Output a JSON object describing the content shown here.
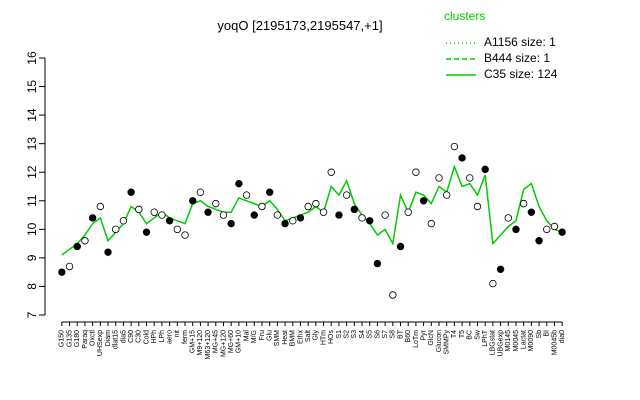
{
  "chart_data": {
    "type": "line",
    "title": "yoqO [2195173,2195547,+1]",
    "legend_title": "clusters",
    "legend_position": "top-right",
    "ylim": [
      7,
      16
    ],
    "yticks": [
      7,
      8,
      9,
      10,
      11,
      12,
      13,
      14,
      15,
      16
    ],
    "categories": [
      "G150",
      "G135",
      "G180",
      "Paraq",
      "Oxctl",
      "UHSexp",
      "Diam",
      "dlat15",
      "dia5",
      "C90",
      "C30",
      "Cold",
      "HPh",
      "LPh",
      "aero",
      "nit",
      "ferm",
      "GM+15",
      "M9+120",
      "M63+120",
      "MG+45",
      "MG+120",
      "MG+60",
      "GM+10",
      "Mal",
      "M/G",
      "Fru",
      "Glu",
      "SMM",
      "Heat",
      "BMM",
      "Ethx",
      "Salt",
      "Gly",
      "HTm",
      "HOs",
      "S1",
      "S2",
      "S3",
      "S4",
      "S5",
      "S6",
      "S7",
      "S8",
      "BT",
      "B60",
      "LoTm",
      "Pyr",
      "GlcN",
      "Glucon",
      "SMMPy",
      "T4",
      "T5",
      "BC",
      "Sw",
      "LPhT",
      "LBGstat",
      "UBGexp",
      "M0145",
      "M0045",
      "Lactat",
      "M0090",
      "Sb",
      "BI",
      "M0045b",
      "dia0"
    ],
    "series": [
      {
        "name": "A1156 size: 1",
        "color": "#00cc00",
        "dash": "dotted"
      },
      {
        "name": "B444 size: 1",
        "color": "#00cc00",
        "dash": "dashed"
      },
      {
        "name": "C35 size: 124",
        "color": "#00cc00",
        "dash": "solid",
        "values": [
          9.1,
          9.3,
          9.5,
          9.8,
          10.2,
          10.4,
          9.6,
          9.9,
          10.2,
          10.8,
          10.6,
          10.2,
          10.4,
          10.6,
          10.4,
          10.3,
          10.2,
          10.9,
          11.0,
          10.8,
          10.7,
          10.6,
          10.6,
          11.1,
          11.0,
          10.9,
          10.8,
          11.0,
          10.7,
          10.3,
          10.4,
          10.5,
          10.6,
          10.8,
          10.6,
          11.5,
          11.2,
          11.7,
          10.9,
          10.5,
          10.2,
          9.8,
          10.0,
          9.5,
          11.2,
          10.6,
          11.3,
          11.2,
          10.9,
          11.5,
          11.3,
          12.2,
          11.5,
          11.6,
          11.2,
          11.9,
          9.5,
          9.8,
          10.1,
          10.3,
          11.4,
          11.6,
          10.8,
          10.3,
          10.0,
          9.9
        ]
      }
    ],
    "markers": {
      "values": [
        8.5,
        8.7,
        9.4,
        9.6,
        10.4,
        10.8,
        9.2,
        10.0,
        10.3,
        11.3,
        10.7,
        9.9,
        10.6,
        10.5,
        10.3,
        10.0,
        9.8,
        11.0,
        11.3,
        10.6,
        10.9,
        10.5,
        10.2,
        11.6,
        11.2,
        10.5,
        10.8,
        11.3,
        10.5,
        10.2,
        10.3,
        10.4,
        10.8,
        10.9,
        10.6,
        12.0,
        10.5,
        11.2,
        10.7,
        10.4,
        10.3,
        8.8,
        10.5,
        7.7,
        9.4,
        10.6,
        12.0,
        11.0,
        10.2,
        11.8,
        11.2,
        12.9,
        12.5,
        11.8,
        10.8,
        12.1,
        8.1,
        8.6,
        10.4,
        10.0,
        10.9,
        10.6,
        9.6,
        10.0,
        10.1,
        9.9
      ],
      "fills": [
        "#000",
        "#fff",
        "#000",
        "#fff",
        "#000",
        "#fff",
        "#000",
        "#fff",
        "#fff",
        "#000",
        "#fff",
        "#000",
        "#fff",
        "#fff",
        "#000",
        "#fff",
        "#fff",
        "#000",
        "#fff",
        "#000",
        "#fff",
        "#fff",
        "#000",
        "#000",
        "#fff",
        "#000",
        "#fff",
        "#000",
        "#fff",
        "#000",
        "#fff",
        "#000",
        "#fff",
        "#fff",
        "#fff",
        "#fff",
        "#000",
        "#fff",
        "#000",
        "#fff",
        "#000",
        "#000",
        "#fff",
        "#fff",
        "#000",
        "#fff",
        "#fff",
        "#000",
        "#fff",
        "#fff",
        "#fff",
        "#fff",
        "#000",
        "#fff",
        "#fff",
        "#000",
        "#fff",
        "#000",
        "#fff",
        "#000",
        "#fff",
        "#000",
        "#000",
        "#fff",
        "#fff",
        "#000"
      ]
    }
  }
}
